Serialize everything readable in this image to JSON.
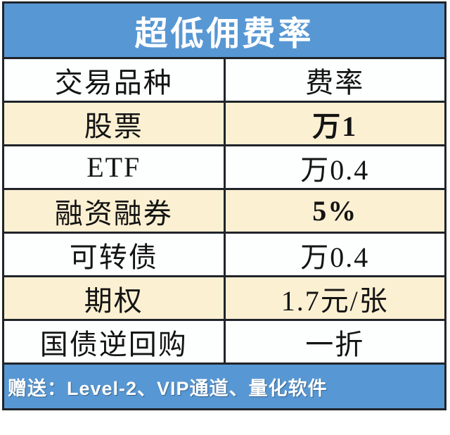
{
  "title": "超低佣费率",
  "footer": "赠送：Level-2、VIP通道、量化软件",
  "colors": {
    "banner_blue": "#5797D3",
    "row_shaded_cream": "#FCF0D2",
    "highlight_red": "#CE2423",
    "border_black": "#20242A",
    "text_black": "#141414",
    "banner_text_white": "#FFFFFF"
  },
  "table": {
    "columns": [
      "交易品种",
      "费率"
    ],
    "rows": [
      {
        "name": "股票",
        "rate": "万1"
      },
      {
        "name": "ETF",
        "rate": "万0.4"
      },
      {
        "name": "融资融券",
        "rate": "5%"
      },
      {
        "name": "可转债",
        "rate": "万0.4"
      },
      {
        "name": "期权",
        "rate": "1.7元/张"
      },
      {
        "name": "国债逆回购",
        "rate": "一折"
      }
    ]
  },
  "chart_data": {
    "type": "table",
    "title": "超低佣费率",
    "columns": [
      "交易品种",
      "费率"
    ],
    "rows": [
      [
        "股票",
        "万1"
      ],
      [
        "ETF",
        "万0.4"
      ],
      [
        "融资融券",
        "5%"
      ],
      [
        "可转债",
        "万0.4"
      ],
      [
        "期权",
        "1.7元/张"
      ],
      [
        "国债逆回购",
        "一折"
      ]
    ],
    "highlighted_values": [
      "万1",
      "5%"
    ],
    "footnote": "赠送：Level-2、VIP通道、量化软件"
  }
}
